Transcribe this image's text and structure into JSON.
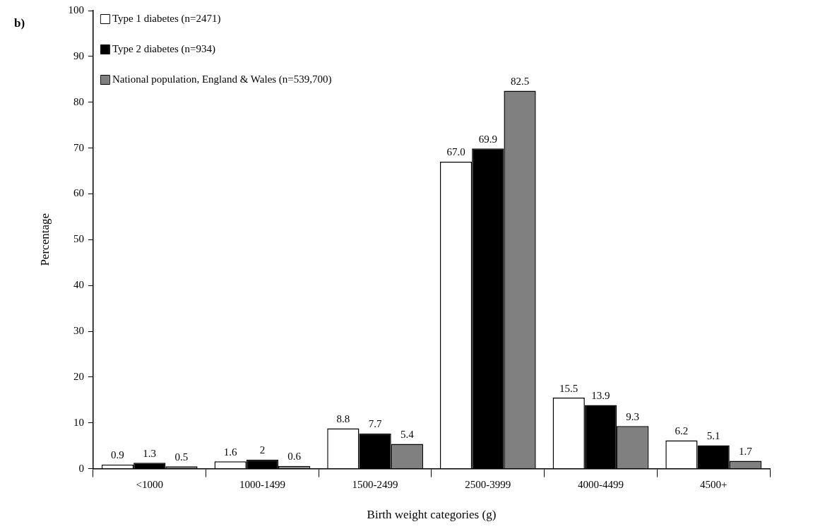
{
  "chart_data": {
    "type": "bar",
    "xlabel": "Birth weight categories (g)",
    "ylabel": "Percentage",
    "annotations": [
      "b)"
    ],
    "categories": [
      "<1000",
      "1000-1499",
      "1500-2499",
      "2500-3999",
      "4000-4499",
      "4500+"
    ],
    "series": [
      {
        "name": "Type 1 diabetes (n=2471)",
        "color": "#ffffff",
        "values": [
          0.9,
          1.6,
          8.8,
          67.0,
          15.5,
          6.2
        ],
        "value_labels": [
          "0.9",
          "1.6",
          "8.8",
          "67.0",
          "15.5",
          "6.2"
        ]
      },
      {
        "name": "Type 2 diabetes (n=934)",
        "color": "#000000",
        "values": [
          1.3,
          2,
          7.7,
          69.9,
          13.9,
          5.1
        ],
        "value_labels": [
          "1.3",
          "2",
          "7.7",
          "69.9",
          "13.9",
          "5.1"
        ]
      },
      {
        "name": "National population, England & Wales (n=539,700)",
        "color": "#808080",
        "values": [
          0.5,
          0.6,
          5.4,
          82.5,
          9.3,
          1.7
        ],
        "value_labels": [
          "0.5",
          "0.6",
          "5.4",
          "82.5",
          "9.3",
          "1.7"
        ]
      }
    ],
    "ylim": [
      0,
      100
    ],
    "yticks": [
      0,
      10,
      20,
      30,
      40,
      50,
      60,
      70,
      80,
      90,
      100
    ],
    "grid": false,
    "legend": "top left"
  }
}
